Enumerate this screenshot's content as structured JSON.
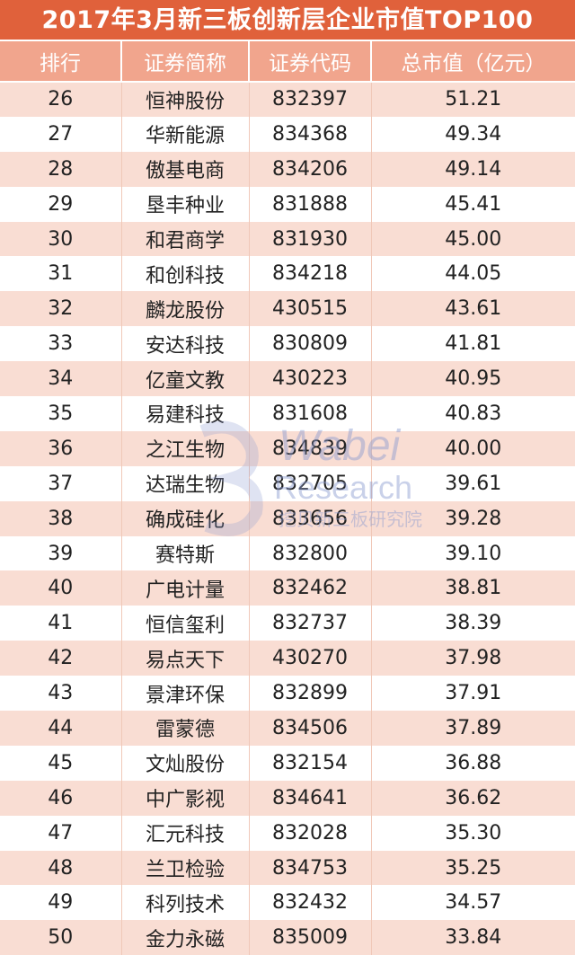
{
  "title": "2017年3月新三板创新层企业市值TOP100",
  "headers": [
    "排行",
    "证券简称",
    "证券代码",
    "总市值（亿元）"
  ],
  "rows": [
    [
      "26",
      "恒神股份",
      "832397",
      "51.21"
    ],
    [
      "27",
      "华新能源",
      "834368",
      "49.34"
    ],
    [
      "28",
      "傲基电商",
      "834206",
      "49.14"
    ],
    [
      "29",
      "垦丰种业",
      "831888",
      "45.41"
    ],
    [
      "30",
      "和君商学",
      "831930",
      "45.00"
    ],
    [
      "31",
      "和创科技",
      "834218",
      "44.05"
    ],
    [
      "32",
      "麟龙股份",
      "430515",
      "43.61"
    ],
    [
      "33",
      "安达科技",
      "830809",
      "41.81"
    ],
    [
      "34",
      "亿童文教",
      "430223",
      "40.95"
    ],
    [
      "35",
      "易建科技",
      "831608",
      "40.83"
    ],
    [
      "36",
      "之江生物",
      "834839",
      "40.00"
    ],
    [
      "37",
      "达瑞生物",
      "832705",
      "39.61"
    ],
    [
      "38",
      "确成硅化",
      "833656",
      "39.28"
    ],
    [
      "39",
      "赛特斯",
      "832800",
      "39.10"
    ],
    [
      "40",
      "广电计量",
      "832462",
      "38.81"
    ],
    [
      "41",
      "恒信玺利",
      "832737",
      "38.39"
    ],
    [
      "42",
      "易点天下",
      "430270",
      "37.98"
    ],
    [
      "43",
      "景津环保",
      "832899",
      "37.91"
    ],
    [
      "44",
      "雷蒙德",
      "834506",
      "37.89"
    ],
    [
      "45",
      "文灿股份",
      "832154",
      "36.88"
    ],
    [
      "46",
      "中广影视",
      "834641",
      "36.62"
    ],
    [
      "47",
      "汇元科技",
      "832028",
      "35.30"
    ],
    [
      "48",
      "兰卫检验",
      "834753",
      "35.25"
    ],
    [
      "49",
      "科列技术",
      "832432",
      "34.57"
    ],
    [
      "50",
      "金力永磁",
      "835009",
      "33.84"
    ]
  ],
  "watermark": {
    "brand": "Wabei",
    "sub": "Research",
    "cn": "挖贝新三板研究院"
  },
  "colors": {
    "title_bg": "#e0613b",
    "header_bg": "#f1a58d",
    "row_alt": "#f9ddd3",
    "watermark": "#8a9ad0"
  }
}
